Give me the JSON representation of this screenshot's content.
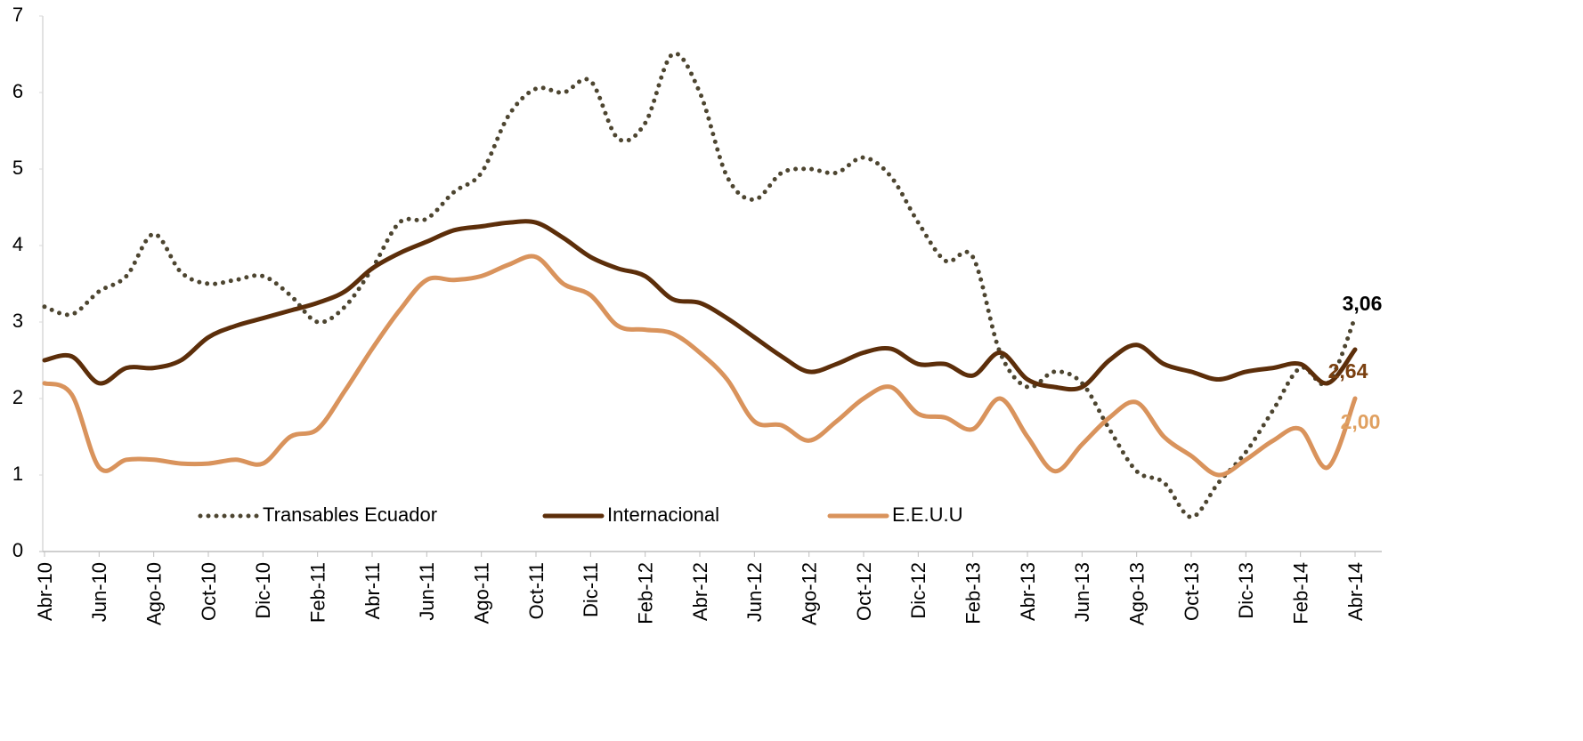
{
  "chart_data": {
    "type": "line",
    "categories": [
      "Abr-10",
      null,
      "Jun-10",
      null,
      "Ago-10",
      null,
      "Oct-10",
      null,
      "Dic-10",
      null,
      "Feb-11",
      null,
      "Abr-11",
      null,
      "Jun-11",
      null,
      "Ago-11",
      null,
      "Oct-11",
      null,
      "Dic-11",
      null,
      "Feb-12",
      null,
      "Abr-12",
      null,
      "Jun-12",
      null,
      "Ago-12",
      null,
      "Oct-12",
      null,
      "Dic-12",
      null,
      "Feb-13",
      null,
      "Abr-13",
      null,
      "Jun-13",
      null,
      "Ago-13",
      null,
      "Oct-13",
      null,
      "Dic-13",
      null,
      "Feb-14",
      null,
      "Abr-14"
    ],
    "series": [
      {
        "name": "Transables Ecuador",
        "color": "#4d4530",
        "dash": "dotted",
        "label_color": "#000000",
        "values": [
          3.2,
          3.1,
          3.4,
          3.6,
          4.15,
          3.65,
          3.5,
          3.55,
          3.6,
          3.35,
          3.0,
          3.2,
          3.7,
          4.3,
          4.35,
          4.7,
          4.95,
          5.7,
          6.05,
          6.0,
          6.15,
          5.4,
          5.6,
          6.5,
          6.0,
          4.9,
          4.6,
          4.95,
          5.0,
          4.95,
          5.15,
          4.9,
          4.3,
          3.8,
          3.85,
          2.6,
          2.15,
          2.35,
          2.2,
          1.6,
          1.05,
          0.9,
          0.45,
          0.9,
          1.3,
          1.85,
          2.4,
          2.2,
          3.06
        ],
        "value_labels": [
          null,
          null,
          null,
          null,
          null,
          null,
          null,
          null,
          null,
          null,
          null,
          null,
          null,
          null,
          null,
          null,
          null,
          null,
          null,
          null,
          null,
          null,
          null,
          null,
          null,
          null,
          null,
          null,
          null,
          null,
          null,
          null,
          null,
          null,
          null,
          null,
          null,
          null,
          null,
          null,
          null,
          null,
          null,
          null,
          null,
          null,
          null,
          null,
          "3,06"
        ]
      },
      {
        "name": "Internacional",
        "color": "#5c2e0a",
        "dash": "solid",
        "label_color": "#7a4010",
        "values": [
          2.5,
          2.55,
          2.2,
          2.4,
          2.4,
          2.5,
          2.8,
          2.95,
          3.05,
          3.15,
          3.25,
          3.4,
          3.7,
          3.9,
          4.05,
          4.2,
          4.25,
          4.3,
          4.3,
          4.1,
          3.85,
          3.7,
          3.6,
          3.3,
          3.25,
          3.05,
          2.8,
          2.55,
          2.35,
          2.45,
          2.6,
          2.65,
          2.45,
          2.45,
          2.3,
          2.6,
          2.25,
          2.15,
          2.15,
          2.5,
          2.7,
          2.45,
          2.35,
          2.25,
          2.35,
          2.4,
          2.45,
          2.2,
          2.64
        ],
        "value_labels": [
          null,
          null,
          null,
          null,
          null,
          null,
          null,
          null,
          null,
          null,
          null,
          null,
          null,
          null,
          null,
          null,
          null,
          null,
          null,
          null,
          null,
          null,
          null,
          null,
          null,
          null,
          null,
          null,
          null,
          null,
          null,
          null,
          null,
          null,
          null,
          null,
          null,
          null,
          null,
          null,
          null,
          null,
          null,
          null,
          null,
          null,
          null,
          null,
          "2,64"
        ]
      },
      {
        "name": "E.E.U.U",
        "color": "#d9935c",
        "dash": "solid",
        "label_color": "#e0a060",
        "values": [
          2.2,
          2.05,
          1.1,
          1.2,
          1.2,
          1.15,
          1.15,
          1.2,
          1.15,
          1.5,
          1.6,
          2.1,
          2.65,
          3.15,
          3.55,
          3.55,
          3.6,
          3.75,
          3.85,
          3.5,
          3.35,
          2.95,
          2.9,
          2.85,
          2.6,
          2.25,
          1.7,
          1.65,
          1.45,
          1.7,
          2.0,
          2.15,
          1.8,
          1.75,
          1.6,
          2.0,
          1.5,
          1.05,
          1.4,
          1.75,
          1.95,
          1.5,
          1.25,
          1.0,
          1.2,
          1.45,
          1.6,
          1.1,
          2.0
        ],
        "value_labels": [
          null,
          null,
          null,
          null,
          null,
          null,
          null,
          null,
          null,
          null,
          null,
          null,
          null,
          null,
          null,
          null,
          null,
          null,
          null,
          null,
          null,
          null,
          null,
          null,
          null,
          null,
          null,
          null,
          null,
          null,
          null,
          null,
          null,
          null,
          null,
          null,
          null,
          null,
          null,
          null,
          null,
          null,
          null,
          null,
          null,
          null,
          null,
          null,
          "2,00"
        ]
      }
    ],
    "ylim": [
      0,
      7
    ],
    "yticks": [
      0,
      1,
      2,
      3,
      4,
      5,
      6,
      7
    ],
    "grid": false,
    "legend": "bottom"
  }
}
